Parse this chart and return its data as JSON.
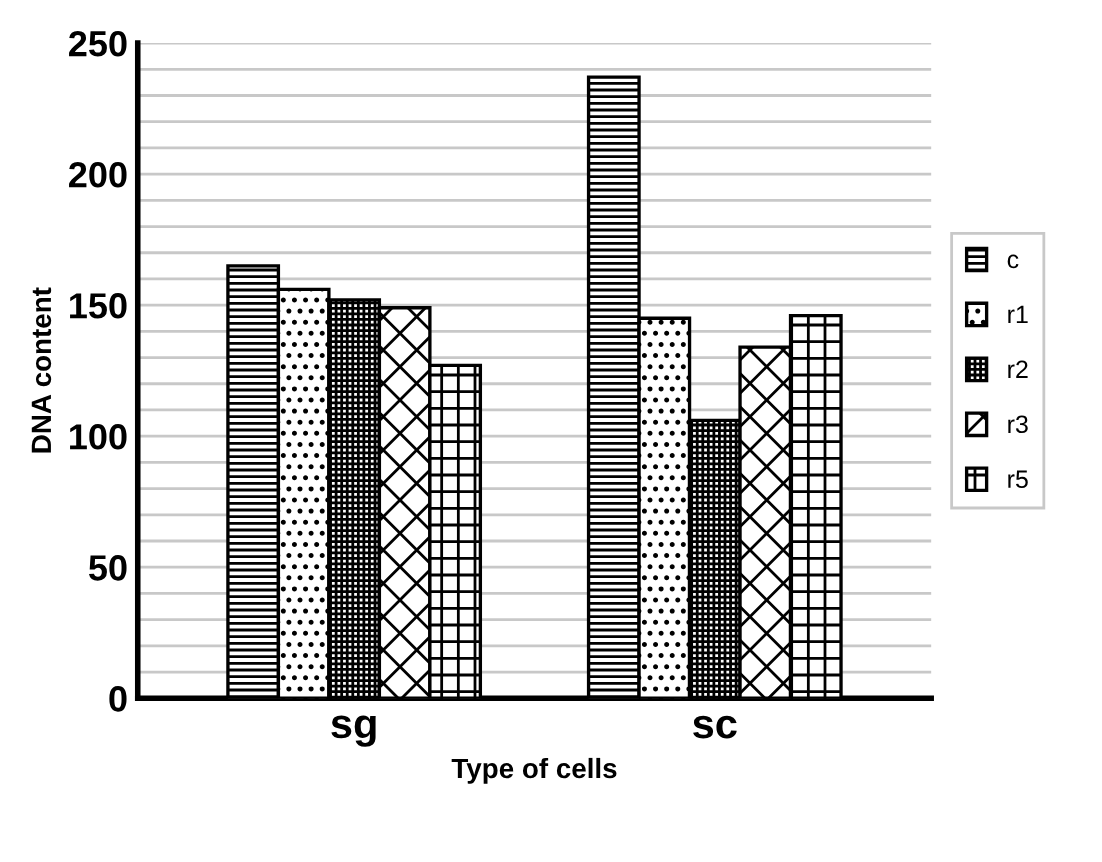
{
  "chart_data": {
    "type": "bar",
    "xlabel": "Type of cells",
    "ylabel": "DNA content",
    "categories": [
      "sg",
      "sc"
    ],
    "series": [
      {
        "name": "c",
        "color": "#000000",
        "values": [
          165,
          237
        ]
      },
      {
        "name": "r1",
        "color": "#000000",
        "values": [
          156,
          145
        ]
      },
      {
        "name": "r2",
        "color": "#000000",
        "values": [
          152,
          106
        ]
      },
      {
        "name": "r3",
        "color": "#000000",
        "values": [
          149,
          134
        ]
      },
      {
        "name": "r5",
        "color": "#000000",
        "values": [
          127,
          146
        ]
      }
    ],
    "ylim": [
      0,
      250
    ],
    "yticks": [
      0,
      {
        "value": 10,
        "label": null
      },
      {
        "value": 20,
        "label": null
      },
      {
        "value": 30,
        "label": null
      },
      {
        "value": 40,
        "label": null
      },
      50,
      {
        "value": 60,
        "label": null
      },
      {
        "value": 70,
        "label": null
      },
      {
        "value": 80,
        "label": null
      },
      {
        "value": 90,
        "label": null
      },
      100,
      {
        "value": 110,
        "label": null
      },
      {
        "value": 120,
        "label": null
      },
      {
        "value": 130,
        "label": null
      },
      {
        "value": 140,
        "label": null
      },
      150,
      {
        "value": 160,
        "label": null
      },
      {
        "value": 170,
        "label": null
      },
      {
        "value": 180,
        "label": null
      },
      {
        "value": 190,
        "label": null
      },
      200,
      {
        "value": 210,
        "label": null
      },
      {
        "value": 220,
        "label": null
      },
      {
        "value": 230,
        "label": null
      },
      {
        "value": 240,
        "label": null
      },
      250
    ],
    "grid": "y",
    "legend": "right"
  }
}
